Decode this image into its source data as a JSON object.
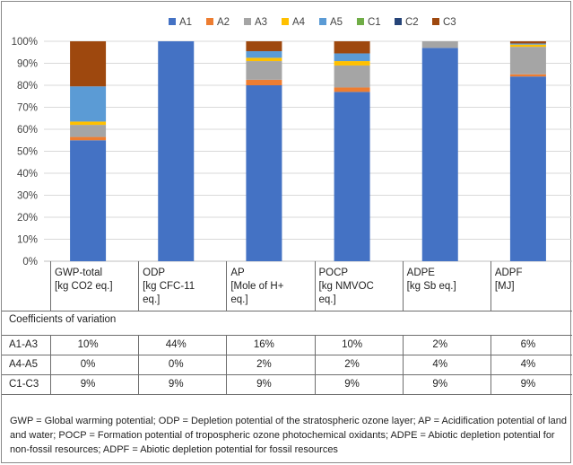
{
  "chart_data": {
    "type": "bar",
    "stacked": true,
    "legend_position": "top",
    "grid": true,
    "ylim": [
      0,
      100
    ],
    "yticks": [
      "0%",
      "10%",
      "20%",
      "30%",
      "40%",
      "50%",
      "60%",
      "70%",
      "80%",
      "90%",
      "100%"
    ],
    "categories": [
      [
        "GWP-total",
        "[kg CO2 eq.]"
      ],
      [
        "ODP",
        "[kg CFC-11",
        "eq.]"
      ],
      [
        "AP",
        "[Mole of H+",
        "eq.]"
      ],
      [
        "POCP",
        "[kg NMVOC",
        "eq.]"
      ],
      [
        "ADPE",
        "[kg Sb eq.]"
      ],
      [
        "ADPF",
        "[MJ]"
      ]
    ],
    "series": [
      {
        "name": "A1",
        "color": "#4472c4",
        "values": [
          55,
          100,
          80,
          77,
          97,
          84
        ]
      },
      {
        "name": "A2",
        "color": "#ed7d31",
        "values": [
          1.5,
          0,
          2.5,
          2,
          0,
          1
        ]
      },
      {
        "name": "A3",
        "color": "#a5a5a5",
        "values": [
          5.5,
          0,
          8.5,
          10,
          3,
          12.5
        ]
      },
      {
        "name": "A4",
        "color": "#ffc000",
        "values": [
          1.5,
          0,
          1.5,
          2,
          0,
          1
        ]
      },
      {
        "name": "A5",
        "color": "#5b9bd5",
        "values": [
          16,
          0,
          3,
          3.5,
          0,
          0.5
        ]
      },
      {
        "name": "C1",
        "color": "#70ad47",
        "values": [
          0,
          0,
          0,
          0,
          0,
          0
        ]
      },
      {
        "name": "C2",
        "color": "#264478",
        "values": [
          0,
          0,
          0,
          0,
          0,
          0
        ]
      },
      {
        "name": "C3",
        "color": "#9e480e",
        "values": [
          20.5,
          0,
          4.5,
          5.5,
          0,
          1
        ]
      }
    ]
  },
  "table": {
    "section_title": "Coefficients of variation",
    "rows": [
      {
        "label": "A1-A3",
        "values": [
          "10%",
          "44%",
          "16%",
          "10%",
          "2%",
          "6%"
        ]
      },
      {
        "label": "A4-A5",
        "values": [
          "0%",
          "0%",
          "2%",
          "2%",
          "4%",
          "4%"
        ]
      },
      {
        "label": "C1-C3",
        "values": [
          "9%",
          "9%",
          "9%",
          "9%",
          "9%",
          "9%"
        ]
      }
    ]
  },
  "footnote": "GWP = Global warming potential; ODP = Depletion potential of the stratospheric ozone layer; AP = Acidification potential of land and water; POCP = Formation potential of tropospheric ozone photochemical oxidants; ADPE = Abiotic depletion potential for non-fossil resources; ADPF = Abiotic depletion potential for fossil resources"
}
